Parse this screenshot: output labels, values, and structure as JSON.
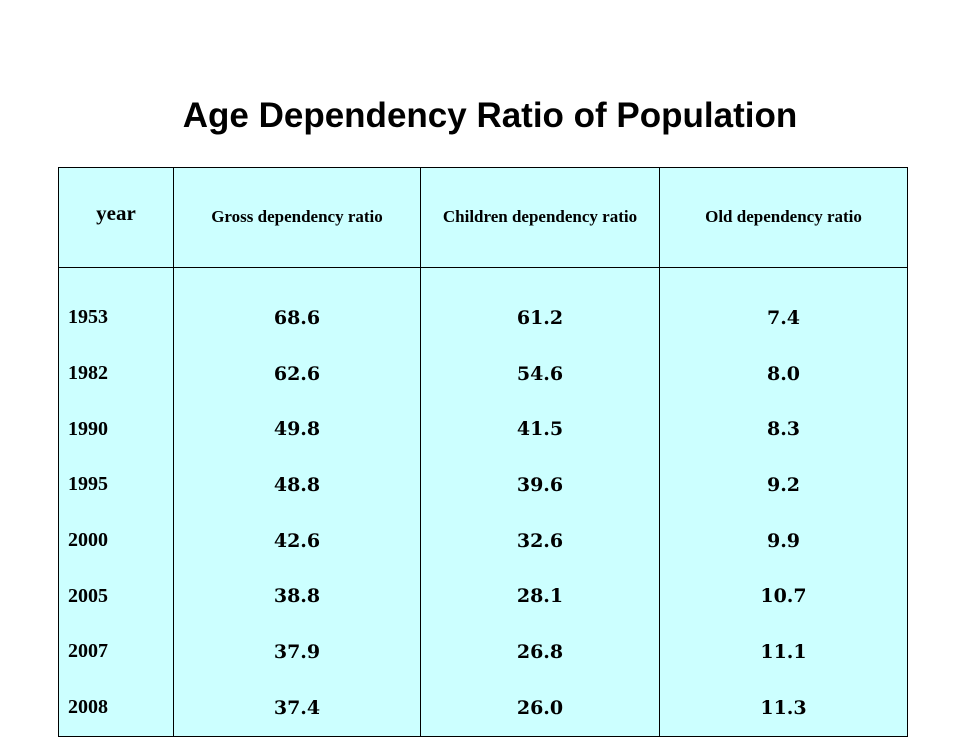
{
  "title": "Age Dependency Ratio of Population",
  "table": {
    "headers": {
      "year": "year",
      "gross": "Gross dependency ratio",
      "children": "Children dependency ratio",
      "old": "Old dependency ratio"
    },
    "rows": [
      {
        "year": "1953",
        "gross": "68.6",
        "children": "61.2",
        "old": "7.4"
      },
      {
        "year": "1982",
        "gross": "62.6",
        "children": "54.6",
        "old": "8.0"
      },
      {
        "year": "1990",
        "gross": "49.8",
        "children": "41.5",
        "old": "8.3"
      },
      {
        "year": "1995",
        "gross": "48.8",
        "children": "39.6",
        "old": "9.2"
      },
      {
        "year": "2000",
        "gross": "42.6",
        "children": "32.6",
        "old": "9.9"
      },
      {
        "year": "2005",
        "gross": "38.8",
        "children": "28.1",
        "old": "10.7"
      },
      {
        "year": "2007",
        "gross": "37.9",
        "children": "26.8",
        "old": "11.1"
      },
      {
        "year": "2008",
        "gross": "37.4",
        "children": "26.0",
        "old": "11.3"
      }
    ]
  },
  "colors": {
    "table_background": "#ccffff",
    "border": "#000000",
    "text": "#000000"
  }
}
